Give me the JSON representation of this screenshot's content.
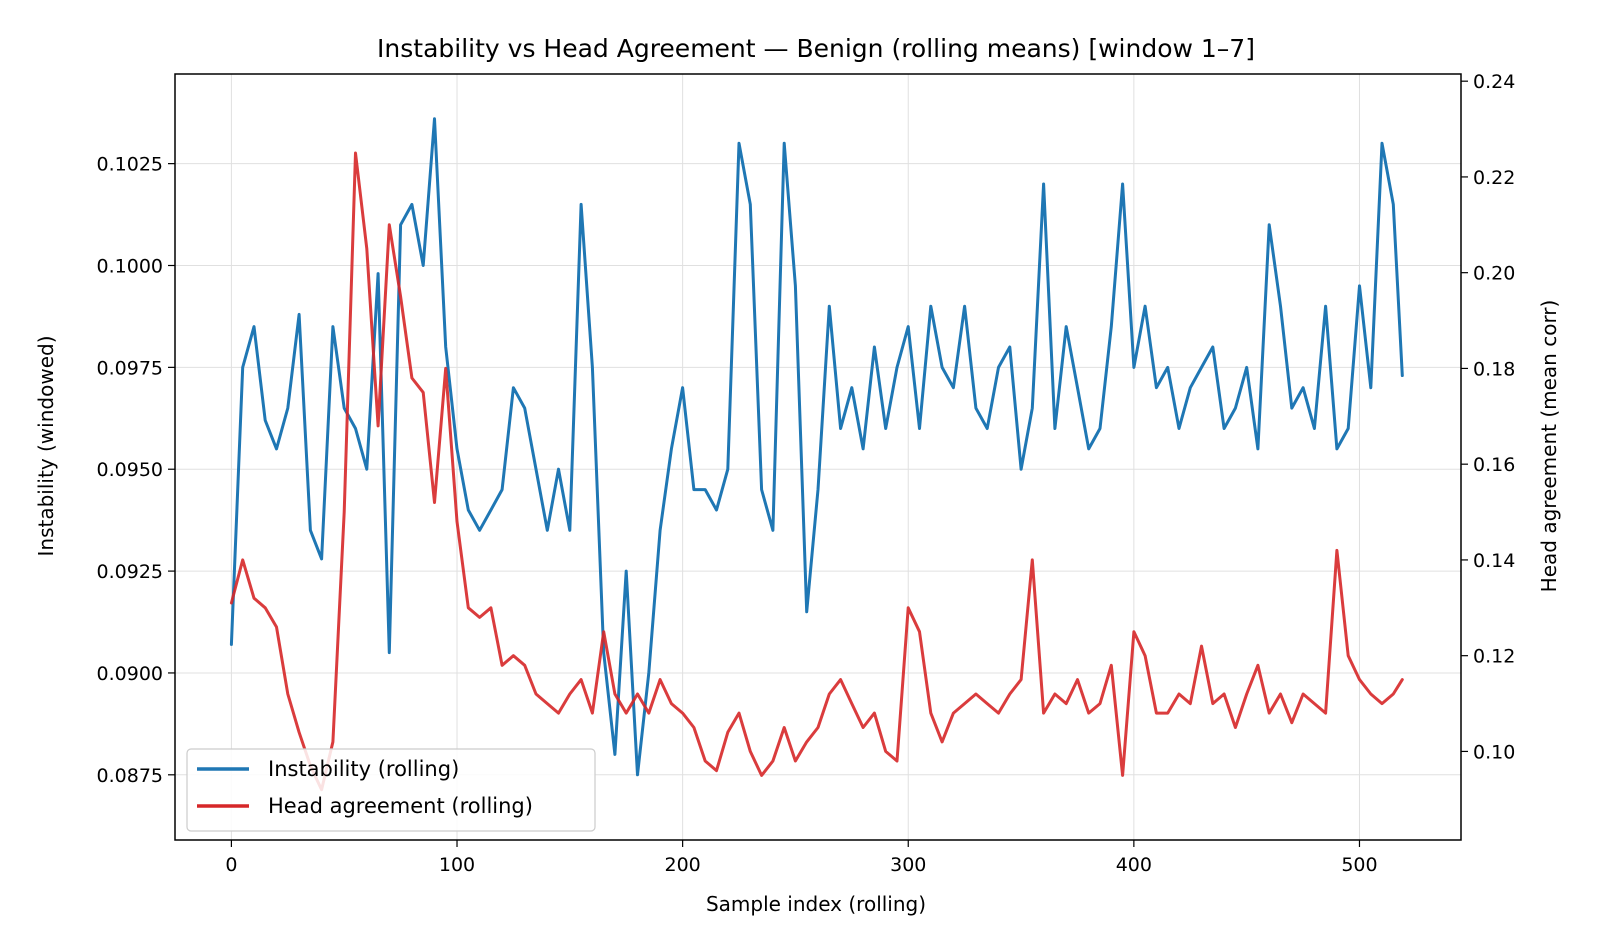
{
  "chart_data": {
    "type": "line",
    "title": "Instability vs Head Agreement — Benign (rolling means)  [window 1–7]",
    "xlabel": "Sample index (rolling)",
    "ylabel": "Instability (windowed)",
    "y2label": "Head agreement (mean corr)",
    "xlim": [
      -25,
      545
    ],
    "ylim": [
      0.0859,
      0.1047
    ],
    "y2lim": [
      0.0815,
      0.2415
    ],
    "x_ticks": [
      0,
      100,
      200,
      300,
      400,
      500
    ],
    "y_ticks": [
      0.0875,
      0.09,
      0.0925,
      0.095,
      0.0975,
      0.1,
      0.1025
    ],
    "y_tick_labels": [
      "0.0875",
      "0.0900",
      "0.0925",
      "0.0950",
      "0.0975",
      "0.1000",
      "0.1025"
    ],
    "y2_ticks": [
      0.1,
      0.12,
      0.14,
      0.16,
      0.18,
      0.2,
      0.22,
      0.24
    ],
    "y2_tick_labels": [
      "0.10",
      "0.12",
      "0.14",
      "0.16",
      "0.18",
      "0.20",
      "0.22",
      "0.24"
    ],
    "grid": true,
    "legend_position": "lower-left",
    "series": [
      {
        "name": "Instability (rolling)",
        "axis": "left",
        "color": "#1f77b4",
        "x": [
          0,
          5,
          10,
          15,
          20,
          25,
          30,
          35,
          40,
          45,
          50,
          55,
          60,
          65,
          70,
          75,
          80,
          85,
          90,
          95,
          100,
          105,
          110,
          115,
          120,
          125,
          130,
          135,
          140,
          145,
          150,
          155,
          160,
          165,
          170,
          175,
          180,
          185,
          190,
          195,
          200,
          205,
          210,
          215,
          220,
          225,
          230,
          235,
          240,
          245,
          250,
          255,
          260,
          265,
          270,
          275,
          280,
          285,
          290,
          295,
          300,
          305,
          310,
          315,
          320,
          325,
          330,
          335,
          340,
          345,
          350,
          355,
          360,
          365,
          370,
          375,
          380,
          385,
          390,
          395,
          400,
          405,
          410,
          415,
          420,
          425,
          430,
          435,
          440,
          445,
          450,
          455,
          460,
          465,
          470,
          475,
          480,
          485,
          490,
          495,
          500,
          505,
          510,
          515,
          519
        ],
        "y": [
          0.0907,
          0.0975,
          0.0985,
          0.0962,
          0.0955,
          0.0965,
          0.0988,
          0.0935,
          0.0928,
          0.0985,
          0.0965,
          0.096,
          0.095,
          0.0998,
          0.0905,
          0.101,
          0.1015,
          0.1,
          0.1036,
          0.098,
          0.0955,
          0.094,
          0.0935,
          0.094,
          0.0945,
          0.097,
          0.0965,
          0.095,
          0.0935,
          0.095,
          0.0935,
          0.1015,
          0.0975,
          0.0905,
          0.088,
          0.0925,
          0.0875,
          0.09,
          0.0935,
          0.0955,
          0.097,
          0.0945,
          0.0945,
          0.094,
          0.095,
          0.103,
          0.1015,
          0.0945,
          0.0935,
          0.103,
          0.0995,
          0.0915,
          0.0945,
          0.099,
          0.096,
          0.097,
          0.0955,
          0.098,
          0.096,
          0.0975,
          0.0985,
          0.096,
          0.099,
          0.0975,
          0.097,
          0.099,
          0.0965,
          0.096,
          0.0975,
          0.098,
          0.095,
          0.0965,
          0.102,
          0.096,
          0.0985,
          0.097,
          0.0955,
          0.096,
          0.0985,
          0.102,
          0.0975,
          0.099,
          0.097,
          0.0975,
          0.096,
          0.097,
          0.0975,
          0.098,
          0.096,
          0.0965,
          0.0975,
          0.0955,
          0.101,
          0.099,
          0.0965,
          0.097,
          0.096,
          0.099,
          0.0955,
          0.096,
          0.0995,
          0.097,
          0.103,
          0.1015,
          0.0973
        ]
      },
      {
        "name": "Head agreement (rolling)",
        "axis": "right",
        "color": "#d62728",
        "x": [
          0,
          5,
          10,
          15,
          20,
          25,
          30,
          35,
          40,
          45,
          50,
          55,
          60,
          65,
          70,
          75,
          80,
          85,
          90,
          95,
          100,
          105,
          110,
          115,
          120,
          125,
          130,
          135,
          140,
          145,
          150,
          155,
          160,
          165,
          170,
          175,
          180,
          185,
          190,
          195,
          200,
          205,
          210,
          215,
          220,
          225,
          230,
          235,
          240,
          245,
          250,
          255,
          260,
          265,
          270,
          275,
          280,
          285,
          290,
          295,
          300,
          305,
          310,
          315,
          320,
          325,
          330,
          335,
          340,
          345,
          350,
          355,
          360,
          365,
          370,
          375,
          380,
          385,
          390,
          395,
          400,
          405,
          410,
          415,
          420,
          425,
          430,
          435,
          440,
          445,
          450,
          455,
          460,
          465,
          470,
          475,
          480,
          485,
          490,
          495,
          500,
          505,
          510,
          515,
          519
        ],
        "y": [
          0.131,
          0.14,
          0.132,
          0.13,
          0.126,
          0.112,
          0.104,
          0.097,
          0.092,
          0.102,
          0.15,
          0.225,
          0.205,
          0.168,
          0.21,
          0.195,
          0.178,
          0.175,
          0.152,
          0.18,
          0.148,
          0.13,
          0.128,
          0.13,
          0.118,
          0.12,
          0.118,
          0.112,
          0.11,
          0.108,
          0.112,
          0.115,
          0.108,
          0.125,
          0.112,
          0.108,
          0.112,
          0.108,
          0.115,
          0.11,
          0.108,
          0.105,
          0.098,
          0.096,
          0.104,
          0.108,
          0.1,
          0.095,
          0.098,
          0.105,
          0.098,
          0.102,
          0.105,
          0.112,
          0.115,
          0.11,
          0.105,
          0.108,
          0.1,
          0.098,
          0.13,
          0.125,
          0.108,
          0.102,
          0.108,
          0.11,
          0.112,
          0.11,
          0.108,
          0.112,
          0.115,
          0.14,
          0.108,
          0.112,
          0.11,
          0.115,
          0.108,
          0.11,
          0.118,
          0.095,
          0.125,
          0.12,
          0.108,
          0.108,
          0.112,
          0.11,
          0.122,
          0.11,
          0.112,
          0.105,
          0.112,
          0.118,
          0.108,
          0.112,
          0.106,
          0.112,
          0.11,
          0.108,
          0.142,
          0.12,
          0.115,
          0.112,
          0.11,
          0.112,
          0.115
        ]
      }
    ]
  }
}
